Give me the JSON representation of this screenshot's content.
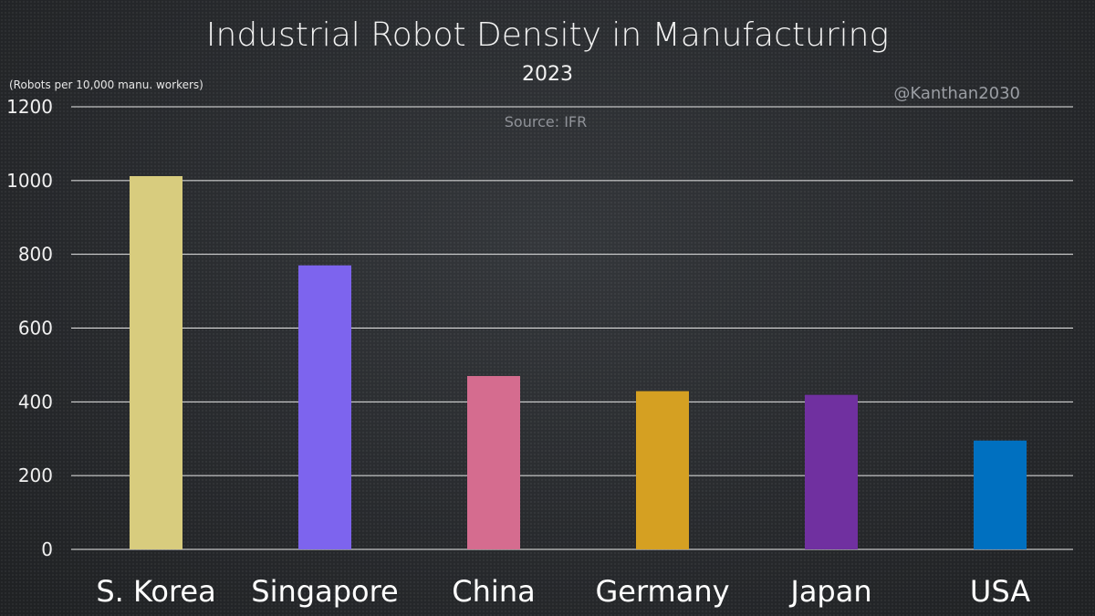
{
  "chart_data": {
    "type": "bar",
    "title": "Industrial Robot Density in Manufacturing",
    "subtitle": "2023",
    "ylabel": "(Robots per 10,000 manu. workers)",
    "source": "Source: IFR",
    "watermark": "@Kanthan2030",
    "ylim": [
      0,
      1200
    ],
    "yticks": [
      0,
      200,
      400,
      600,
      800,
      1000,
      1200
    ],
    "grid": true,
    "categories": [
      "S. Korea",
      "Singapore",
      "China",
      "Germany",
      "Japan",
      "USA"
    ],
    "values": [
      1012,
      770,
      470,
      429,
      419,
      295
    ],
    "colors": [
      "#d8cc7e",
      "#7d64ee",
      "#d56c8f",
      "#d5a022",
      "#7030a0",
      "#0070c0"
    ]
  }
}
